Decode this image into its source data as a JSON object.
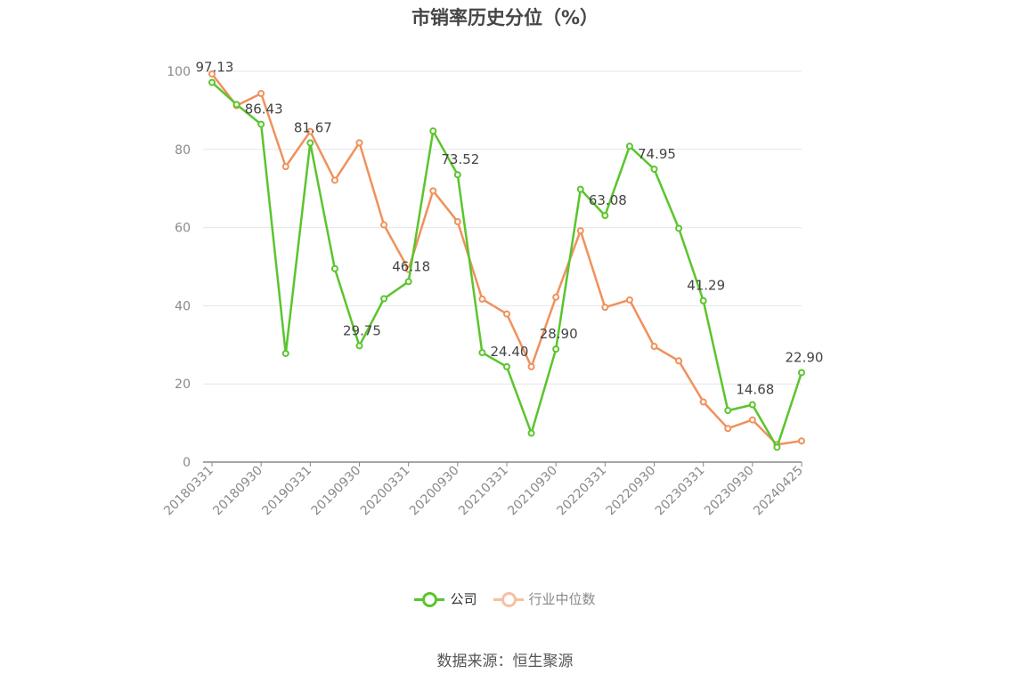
{
  "source_text": "数据来源：恒生聚源",
  "chart_data": {
    "type": "line",
    "title": "市销率历史分位（%）",
    "xlabel": "",
    "ylabel": "",
    "ylim": [
      0,
      100
    ],
    "yticks": [
      0,
      20,
      40,
      60,
      80,
      100
    ],
    "grid": true,
    "legend_position": "bottom",
    "x": [
      "20180331",
      "20180630",
      "20180930",
      "20181231",
      "20190331",
      "20190630",
      "20190930",
      "20191231",
      "20200331",
      "20200630",
      "20200930",
      "20201231",
      "20210331",
      "20210630",
      "20210930",
      "20211231",
      "20220331",
      "20220630",
      "20220930",
      "20221231",
      "20230331",
      "20230630",
      "20230930",
      "20231231",
      "20240425"
    ],
    "xtick_labels": [
      "20180331",
      "20180930",
      "20190331",
      "20190930",
      "20200331",
      "20200930",
      "20210331",
      "20210930",
      "20220331",
      "20220930",
      "20230331",
      "20230930",
      "20240425"
    ],
    "series": [
      {
        "name": "公司",
        "color": "#5ac52d",
        "values": [
          97.13,
          91.5,
          86.43,
          27.8,
          81.67,
          49.5,
          29.75,
          41.8,
          46.18,
          84.7,
          73.52,
          28.0,
          24.4,
          7.4,
          28.9,
          69.8,
          63.08,
          80.8,
          74.95,
          59.8,
          41.29,
          13.2,
          14.68,
          3.8,
          22.9
        ],
        "labels": {
          "0": "97.13",
          "2": "86.43",
          "4": "81.67",
          "6": "29.75",
          "8": "46.18",
          "10": "73.52",
          "12": "24.40",
          "14": "28.90",
          "16": "63.08",
          "18": "74.95",
          "20": "41.29",
          "22": "14.68",
          "24": "22.90"
        }
      },
      {
        "name": "行业中位数",
        "color": "#f0915c",
        "values": [
          99.3,
          91.2,
          94.3,
          75.6,
          84.6,
          72.1,
          81.7,
          60.7,
          49.3,
          69.4,
          61.5,
          41.7,
          37.9,
          24.4,
          42.2,
          59.2,
          39.6,
          41.5,
          29.6,
          25.9,
          15.4,
          8.6,
          10.8,
          4.5,
          5.4
        ]
      }
    ]
  }
}
